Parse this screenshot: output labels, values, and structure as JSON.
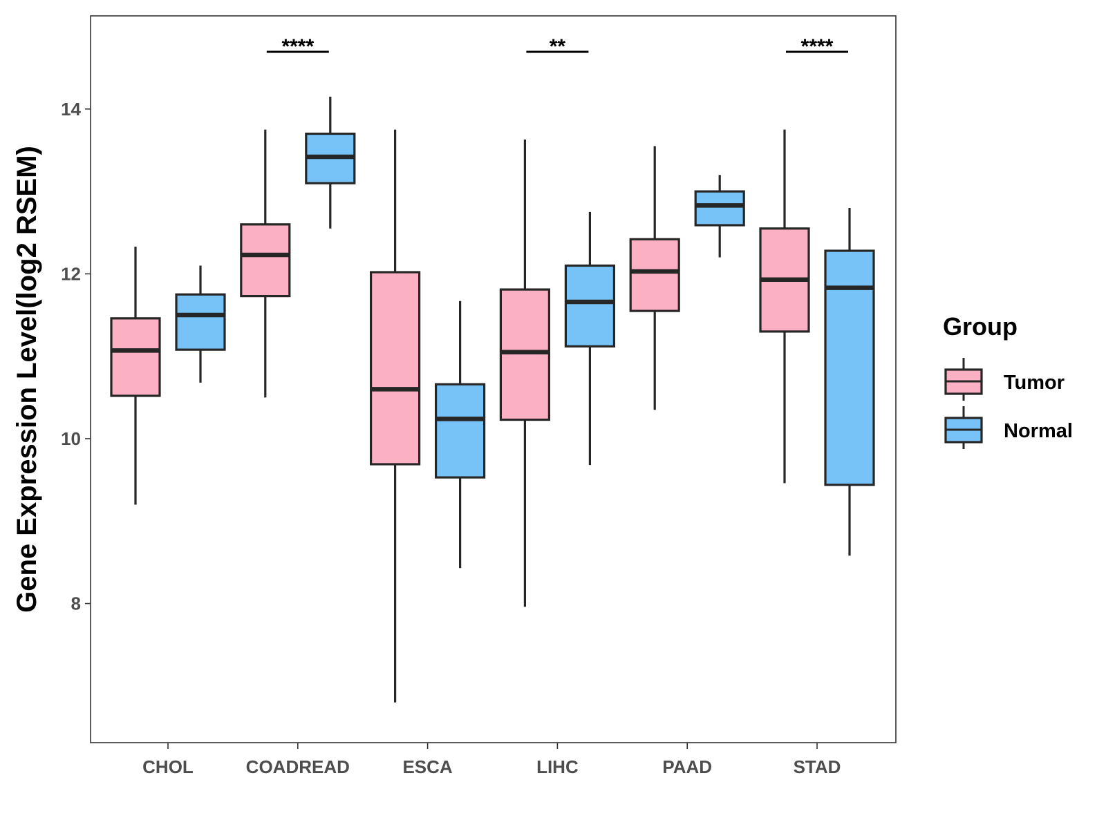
{
  "chart_data": {
    "type": "boxplot",
    "title": "",
    "xlabel": "",
    "ylabel": "Gene Expression Level(log2 RSEM)",
    "ylim": [
      6.4,
      15.2
    ],
    "yticks": [
      8,
      10,
      12,
      14
    ],
    "ytick_labels": [
      "8",
      "10",
      "12",
      "14"
    ],
    "grid": false,
    "legend_position": "right",
    "categories": [
      "CHOL",
      "COADREAD",
      "ESCA",
      "LIHC",
      "PAAD",
      "STAD"
    ],
    "legend": {
      "title": "Group",
      "entries": [
        {
          "label": "Tumor",
          "color": "#FBB1C3"
        },
        {
          "label": "Normal",
          "color": "#77C3F7"
        }
      ]
    },
    "series": [
      {
        "name": "Tumor",
        "color": "#FBB1C3",
        "boxes": [
          {
            "whisker_low": 9.2,
            "q1": 10.52,
            "median": 11.07,
            "q3": 11.46,
            "whisker_high": 12.33
          },
          {
            "whisker_low": 10.5,
            "q1": 11.73,
            "median": 12.23,
            "q3": 12.6,
            "whisker_high": 13.75
          },
          {
            "whisker_low": 6.8,
            "q1": 9.69,
            "median": 10.6,
            "q3": 12.02,
            "whisker_high": 13.75
          },
          {
            "whisker_low": 7.96,
            "q1": 10.23,
            "median": 11.05,
            "q3": 11.81,
            "whisker_high": 13.63
          },
          {
            "whisker_low": 10.35,
            "q1": 11.55,
            "median": 12.03,
            "q3": 12.42,
            "whisker_high": 13.55
          },
          {
            "whisker_low": 9.46,
            "q1": 11.3,
            "median": 11.93,
            "q3": 12.55,
            "whisker_high": 13.75
          }
        ]
      },
      {
        "name": "Normal",
        "color": "#77C3F7",
        "boxes": [
          {
            "whisker_low": 10.68,
            "q1": 11.08,
            "median": 11.5,
            "q3": 11.75,
            "whisker_high": 12.1
          },
          {
            "whisker_low": 12.55,
            "q1": 13.1,
            "median": 13.42,
            "q3": 13.7,
            "whisker_high": 14.15
          },
          {
            "whisker_low": 8.43,
            "q1": 9.53,
            "median": 10.24,
            "q3": 10.66,
            "whisker_high": 11.67
          },
          {
            "whisker_low": 9.68,
            "q1": 11.12,
            "median": 11.66,
            "q3": 12.1,
            "whisker_high": 12.75
          },
          {
            "whisker_low": 12.2,
            "q1": 12.59,
            "median": 12.83,
            "q3": 13.0,
            "whisker_high": 13.2
          },
          {
            "whisker_low": 8.58,
            "q1": 9.44,
            "median": 11.83,
            "q3": 12.28,
            "whisker_high": 12.8
          }
        ]
      }
    ],
    "significance": [
      {
        "category": "COADREAD",
        "label": "****"
      },
      {
        "category": "LIHC",
        "label": "**"
      },
      {
        "category": "STAD",
        "label": "****"
      }
    ]
  }
}
